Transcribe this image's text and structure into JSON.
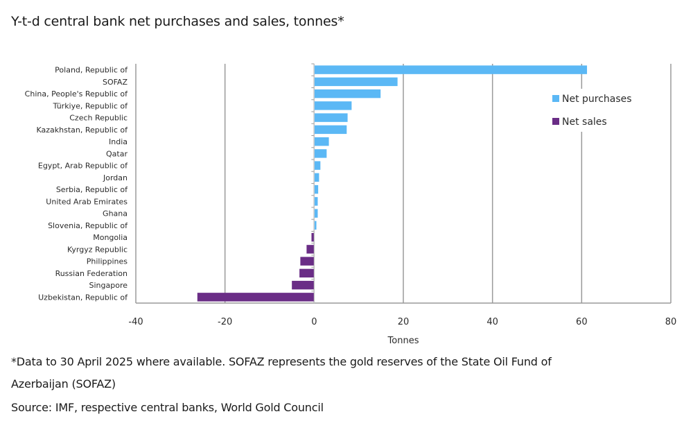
{
  "title": "Y-t-d central bank net purchases and sales, tonnes*",
  "footnote_line1": "*Data to 30 April 2025 where available. SOFAZ represents the gold reserves of the State Oil Fund of",
  "footnote_line2": "Azerbaijan (SOFAZ)",
  "source": "Source: IMF, respective central banks, World Gold Council",
  "colors": {
    "purchases": "#5bb8f5",
    "sales": "#6a2d86",
    "grid": "#9a9a9a"
  },
  "chart_data": {
    "type": "bar",
    "orientation": "horizontal",
    "title": "Y-t-d central bank net purchases and sales, tonnes*",
    "xlabel": "Tonnes",
    "ylabel": "",
    "xlim": [
      -40,
      80
    ],
    "xticks": [
      -40,
      -20,
      0,
      20,
      40,
      60,
      80
    ],
    "grid": "vertical",
    "legend_position": "top-right",
    "legend": [
      "Net purchases",
      "Net sales"
    ],
    "categories": [
      "Poland, Republic of",
      "SOFAZ",
      "China, People's Republic of",
      "Türkiye, Republic of",
      "Czech Republic",
      "Kazakhstan, Republic of",
      "India",
      "Qatar",
      "Egypt, Arab Republic of",
      "Jordan",
      "Serbia, Republic of",
      "United Arab Emirates",
      "Ghana",
      "Slovenia, Republic of",
      "Mongolia",
      "Kyrgyz Republic",
      "Philippines",
      "Russian Federation",
      "Singapore",
      "Uzbekistan, Republic of"
    ],
    "values": [
      61.2,
      18.7,
      14.9,
      8.4,
      7.5,
      7.3,
      3.3,
      2.8,
      1.4,
      1.1,
      0.9,
      0.8,
      0.8,
      0.5,
      -0.6,
      -1.7,
      -3.1,
      -3.3,
      -5.0,
      -26.2
    ]
  }
}
